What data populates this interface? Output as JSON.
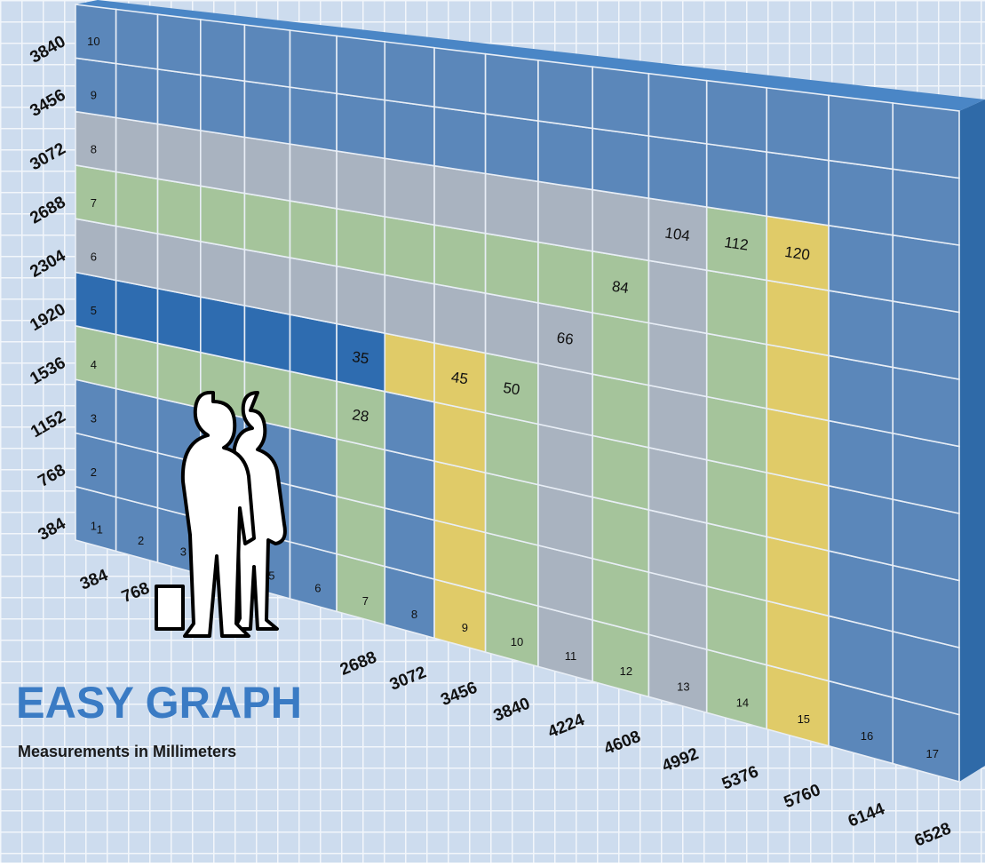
{
  "title": "EASY GRAPH",
  "subtitle": "Measurements in Millimeters",
  "rows": [
    {
      "number": 1,
      "mm": 384
    },
    {
      "number": 2,
      "mm": 768
    },
    {
      "number": 3,
      "mm": 1152
    },
    {
      "number": 4,
      "mm": 1536
    },
    {
      "number": 5,
      "mm": 1920
    },
    {
      "number": 6,
      "mm": 2304
    },
    {
      "number": 7,
      "mm": 2688
    },
    {
      "number": 8,
      "mm": 3072
    },
    {
      "number": 9,
      "mm": 3456
    },
    {
      "number": 10,
      "mm": 3840
    }
  ],
  "columns": [
    {
      "number": 1,
      "mm": 384
    },
    {
      "number": 2,
      "mm": 768
    },
    {
      "number": 3,
      "mm": null
    },
    {
      "number": null,
      "mm": null
    },
    {
      "number": 5,
      "mm": null
    },
    {
      "number": 6,
      "mm": null
    },
    {
      "number": 7,
      "mm": 2688
    },
    {
      "number": 8,
      "mm": 3072
    },
    {
      "number": 9,
      "mm": 3456
    },
    {
      "number": 10,
      "mm": 3840
    },
    {
      "number": 11,
      "mm": 4224
    },
    {
      "number": 12,
      "mm": 4608
    },
    {
      "number": 13,
      "mm": 4992
    },
    {
      "number": 14,
      "mm": 5376
    },
    {
      "number": 15,
      "mm": 5760
    },
    {
      "number": 16,
      "mm": 6144
    },
    {
      "number": 17,
      "mm": 6528
    }
  ],
  "highlights": [
    {
      "value": 120,
      "row": 8,
      "col": 15,
      "color": "#e0cb68"
    },
    {
      "value": 112,
      "row": 8,
      "col": 14,
      "color": "#a5c49b"
    },
    {
      "value": 104,
      "row": 8,
      "col": 13,
      "color": "#a9b3c0"
    },
    {
      "value": 84,
      "row": 7,
      "col": 12,
      "color": "#a5c49b"
    },
    {
      "value": 66,
      "row": 6,
      "col": 11,
      "color": "#a9b3c0"
    },
    {
      "value": 50,
      "row": 5,
      "col": 10,
      "color": "#a5c49b"
    },
    {
      "value": 45,
      "row": 5,
      "col": 9,
      "color": "#e0cb68"
    },
    {
      "value": 35,
      "row": 5,
      "col": 7,
      "color": "#2e6cb0"
    },
    {
      "value": 28,
      "row": 4,
      "col": 7,
      "color": "#a5c49b"
    }
  ]
}
